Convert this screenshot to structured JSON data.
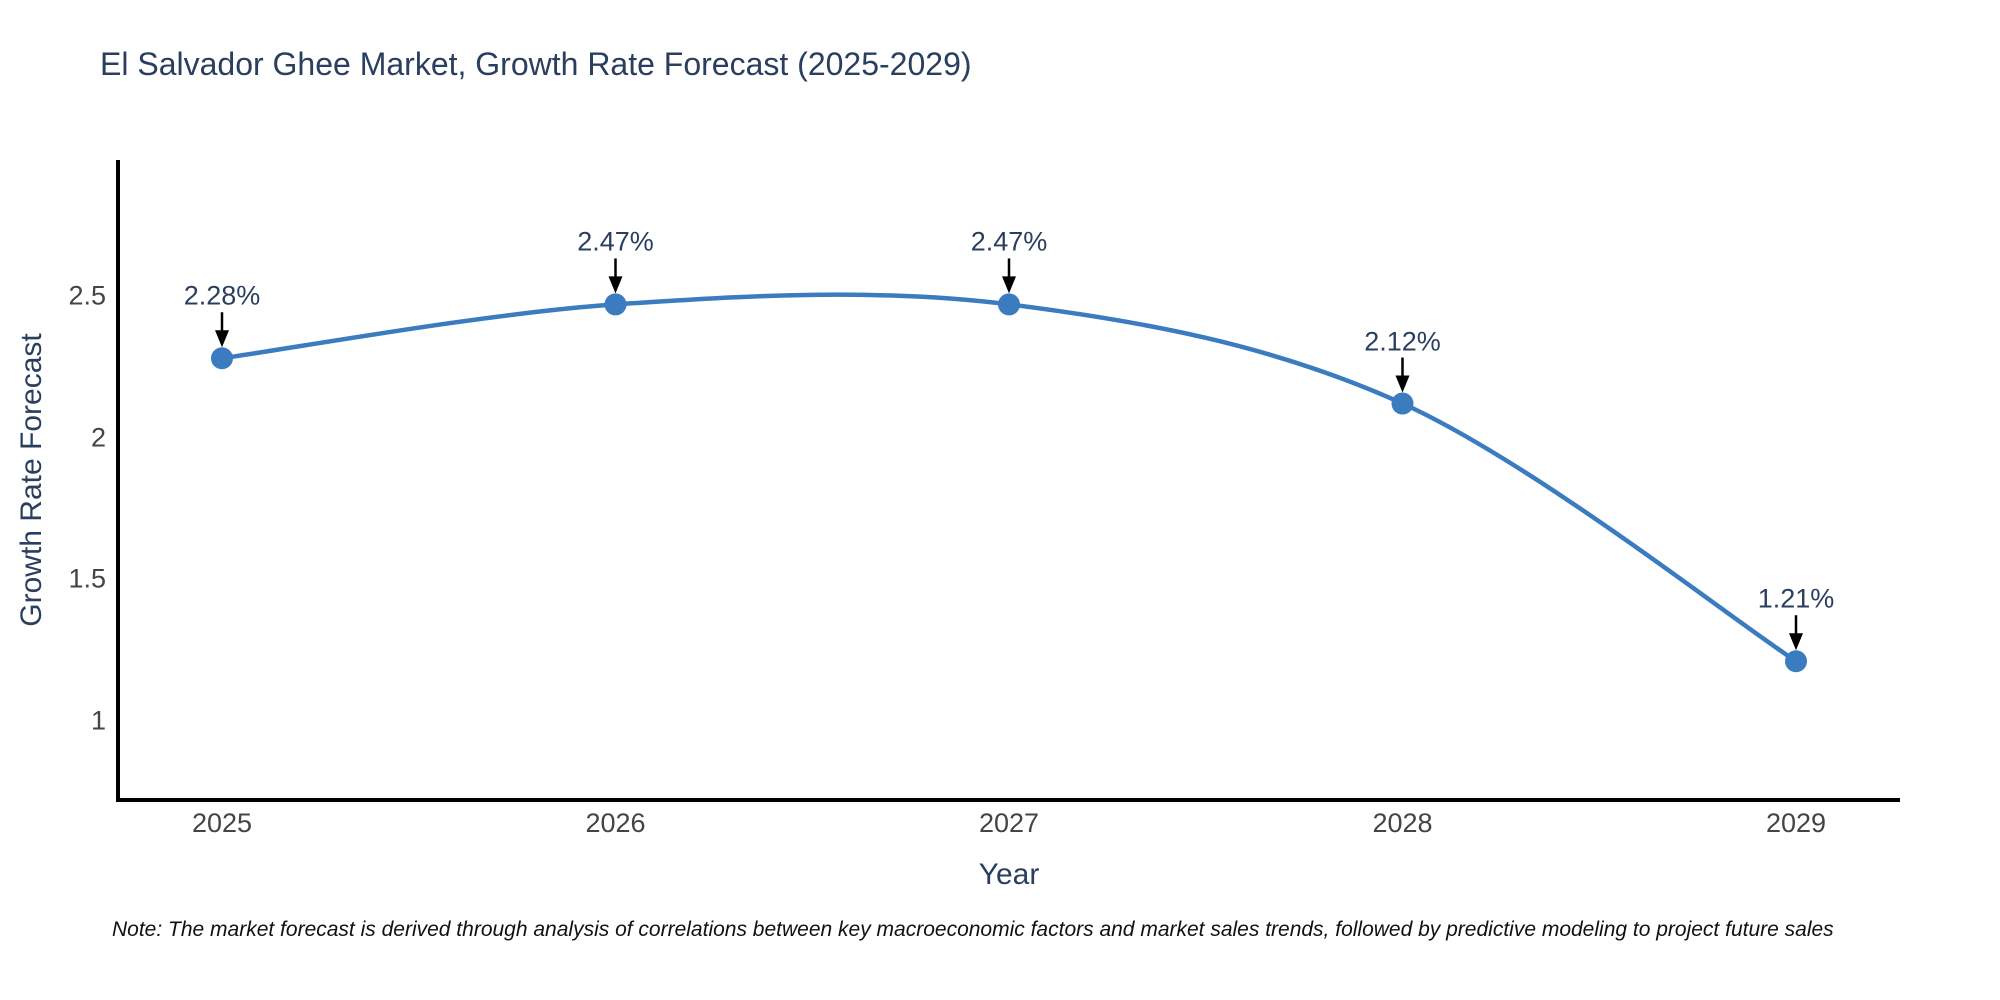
{
  "chart": {
    "title": "El Salvador Ghee Market, Growth Rate Forecast (2025-2029)",
    "note": "Note: The market forecast is derived through analysis of correlations between key macroeconomic factors and market sales trends, followed by predictive modeling to project future sales"
  },
  "chart_data": {
    "type": "line",
    "title": "El Salvador Ghee Market, Growth Rate Forecast (2025-2029)",
    "categories": [
      "2025",
      "2026",
      "2027",
      "2028",
      "2029"
    ],
    "values": [
      2.28,
      2.47,
      2.47,
      2.12,
      1.21
    ],
    "data_labels": [
      "2.28%",
      "2.47%",
      "2.47%",
      "2.12%",
      "1.21%"
    ],
    "xlabel": "Year",
    "ylabel": "Growth Rate Forecast",
    "y_ticks": [
      1,
      1.5,
      2,
      2.5
    ],
    "y_tick_labels": [
      "1",
      "1.5",
      "2",
      "2.5"
    ],
    "ylim": [
      0.72,
      2.98
    ],
    "line_shape": "spline",
    "grid": false,
    "legend": "none",
    "line_color": "#3a7cbf",
    "marker_color": "#3a7cbf",
    "axis_line_color": "#000000",
    "annotation_arrow_color": "#000000",
    "title_color": "#2a3f5f",
    "tick_color": "#444444"
  }
}
